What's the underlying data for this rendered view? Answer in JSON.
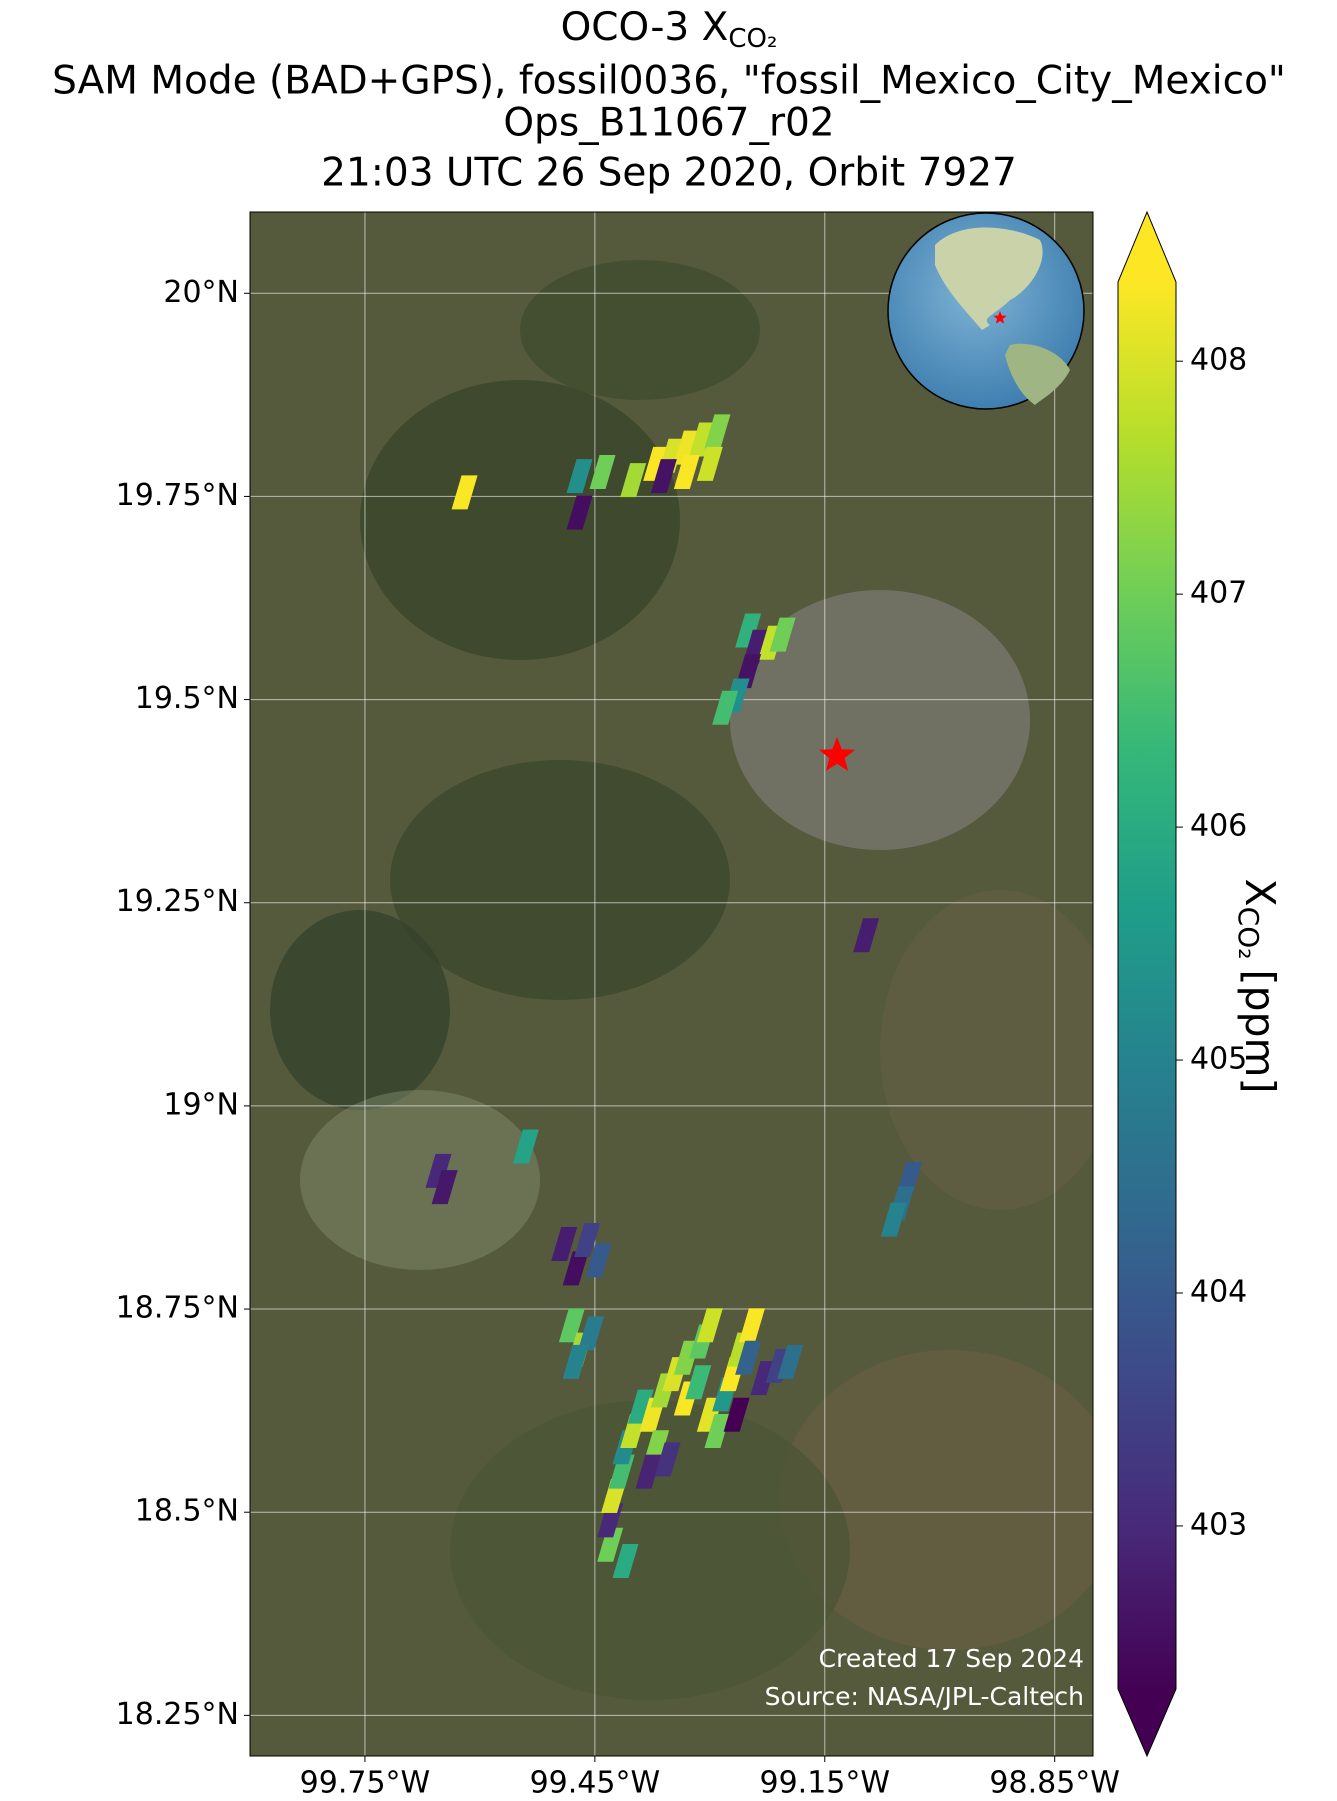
{
  "chart_data": {
    "type": "map",
    "title": {
      "text": "OCO-3 X",
      "subscript": "CO₂"
    },
    "subtitle": [
      "SAM Mode (BAD+GPS), fossil0036, \"fossil_Mexico_City_Mexico\"",
      "Ops_B11067_r02",
      "21:03 UTC 26 Sep 2020, Orbit 7927"
    ],
    "xlim": [
      -99.9,
      -98.8
    ],
    "ylim": [
      18.2,
      20.1
    ],
    "xticks": [
      {
        "value": -99.75,
        "label": "99.75°W"
      },
      {
        "value": -99.45,
        "label": "99.45°W"
      },
      {
        "value": -99.15,
        "label": "99.15°W"
      },
      {
        "value": -98.85,
        "label": "98.85°W"
      }
    ],
    "yticks": [
      {
        "value": 18.25,
        "label": "18.25°N"
      },
      {
        "value": 18.5,
        "label": "18.5°N"
      },
      {
        "value": 18.75,
        "label": "18.75°N"
      },
      {
        "value": 19,
        "label": "19°N"
      },
      {
        "value": 19.25,
        "label": "19.25°N"
      },
      {
        "value": 19.5,
        "label": "19.5°N"
      },
      {
        "value": 19.75,
        "label": "19.75°N"
      },
      {
        "value": 20,
        "label": "20°N"
      }
    ],
    "grid": true,
    "target": {
      "lon": -99.134,
      "lat": 19.431,
      "color": "#ff0000"
    },
    "soundings": {
      "lon": [
        -99.47,
        -99.44,
        -99.37,
        -99.35,
        -99.33,
        -99.31,
        -99.29,
        -99.36,
        -99.33,
        -99.3,
        -99.4,
        -99.62,
        -99.47,
        -99.25,
        -99.24,
        -99.22,
        -99.205,
        -99.25,
        -99.265,
        -99.28,
        -99.096,
        -99.54,
        -99.654,
        -99.646,
        -99.04,
        -99.05,
        -99.06,
        -99.49,
        -99.475,
        -99.46,
        -99.445,
        -99.48,
        -99.47,
        -99.455,
        -99.475,
        -99.43,
        -99.43,
        -99.425,
        -99.415,
        -99.41,
        -99.4,
        -99.39,
        -99.375,
        -99.37,
        -99.38,
        -99.355,
        -99.36,
        -99.345,
        -99.33,
        -99.31,
        -99.3,
        -99.33,
        -99.315,
        -99.3,
        -99.29,
        -99.28,
        -99.265,
        -99.27,
        -99.26,
        -99.245,
        -99.25,
        -99.23,
        -99.21,
        -99.195,
        -99.41
      ],
      "lat": [
        19.775,
        19.78,
        19.79,
        19.8,
        19.81,
        19.82,
        19.83,
        19.775,
        19.78,
        19.79,
        19.77,
        19.755,
        19.73,
        19.585,
        19.565,
        19.57,
        19.58,
        19.535,
        19.505,
        19.49,
        19.21,
        18.95,
        18.92,
        18.9,
        18.91,
        18.88,
        18.86,
        18.83,
        18.8,
        18.835,
        18.81,
        18.73,
        18.7,
        18.72,
        18.685,
        18.46,
        18.49,
        18.52,
        18.55,
        18.58,
        18.6,
        18.63,
        18.62,
        18.58,
        18.55,
        18.565,
        18.65,
        18.67,
        18.69,
        18.71,
        18.73,
        18.64,
        18.66,
        18.62,
        18.6,
        18.645,
        18.62,
        18.67,
        18.7,
        18.73,
        18.69,
        18.665,
        18.68,
        18.685,
        18.44
      ],
      "values": [
        405.3,
        407.0,
        408.3,
        408.0,
        408.2,
        407.8,
        407.2,
        402.6,
        408.3,
        407.9,
        407.5,
        408.3,
        402.5,
        406.2,
        402.8,
        407.8,
        407.0,
        402.6,
        405.3,
        406.5,
        402.8,
        405.8,
        403.0,
        402.7,
        404.0,
        404.5,
        405.0,
        402.8,
        402.5,
        403.5,
        404.0,
        406.8,
        407.5,
        404.8,
        405.0,
        407.0,
        403.0,
        408.0,
        406.5,
        405.2,
        407.8,
        406.0,
        408.2,
        407.2,
        402.9,
        403.2,
        407.5,
        408.0,
        407.2,
        406.8,
        407.9,
        408.3,
        406.4,
        408.1,
        407.0,
        405.5,
        402.2,
        408.4,
        407.7,
        408.3,
        404.2,
        403.0,
        403.5,
        404.5,
        406.0
      ]
    },
    "colorbar": {
      "label": {
        "text": "X",
        "subscript": "CO₂",
        "unit": "[ppm]"
      },
      "clim": [
        402.3,
        408.34
      ],
      "ticks": [
        403,
        404,
        405,
        406,
        407,
        408
      ],
      "colormap": [
        "#440154",
        "#482878",
        "#3e4989",
        "#31688e",
        "#26828e",
        "#1f9e89",
        "#35b779",
        "#6ece58",
        "#b5de2b",
        "#fde725"
      ]
    },
    "credits": [
      "Created 17 Sep 2024",
      "Source: NASA/JPL-Caltech"
    ]
  }
}
